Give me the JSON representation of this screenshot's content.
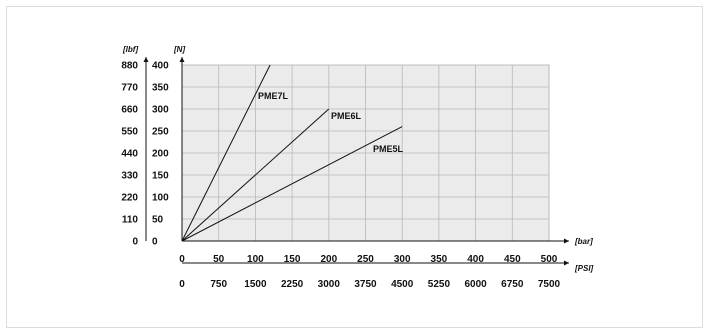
{
  "chart_data": {
    "type": "line",
    "primary_x_unit": "[bar]",
    "secondary_x_unit": "[PSI]",
    "primary_y_unit": "[N]",
    "secondary_y_unit": "[lbf]",
    "x_ticks": [
      0,
      50,
      100,
      150,
      200,
      250,
      300,
      350,
      400,
      450,
      500
    ],
    "x2_ticks": [
      0,
      750,
      1500,
      2250,
      3000,
      3750,
      4500,
      5250,
      6000,
      6750,
      7500
    ],
    "y_ticks": [
      0,
      50,
      100,
      150,
      200,
      250,
      300,
      350,
      400
    ],
    "y2_ticks": [
      0,
      110,
      220,
      330,
      440,
      550,
      660,
      770,
      880
    ],
    "xlim": [
      0,
      500
    ],
    "ylim": [
      0,
      400
    ],
    "grid": true,
    "series": [
      {
        "name": "PME7L",
        "x": [
          0,
          120
        ],
        "y": [
          0,
          400
        ]
      },
      {
        "name": "PME6L",
        "x": [
          0,
          200
        ],
        "y": [
          0,
          300
        ]
      },
      {
        "name": "PME5L",
        "x": [
          0,
          300
        ],
        "y": [
          0,
          260
        ]
      }
    ]
  }
}
